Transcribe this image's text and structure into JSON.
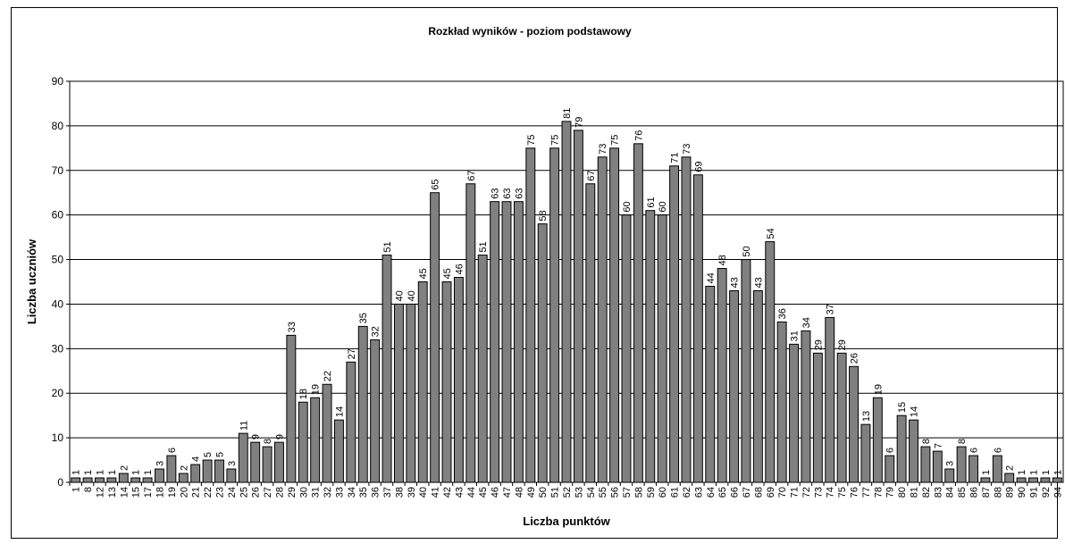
{
  "chart_data": {
    "type": "bar",
    "title": "Rozkład wyników - poziom podstawowy",
    "xlabel": "Liczba punktów",
    "ylabel": "Liczba uczniów",
    "ylim": [
      0,
      90
    ],
    "yticks": [
      0,
      10,
      20,
      30,
      40,
      50,
      60,
      70,
      80,
      90
    ],
    "grid": true,
    "bar_color": "#808080",
    "categories": [
      "1",
      "8",
      "12",
      "13",
      "14",
      "15",
      "17",
      "18",
      "19",
      "20",
      "21",
      "22",
      "23",
      "24",
      "25",
      "26",
      "27",
      "28",
      "29",
      "30",
      "31",
      "32",
      "33",
      "34",
      "35",
      "36",
      "37",
      "38",
      "39",
      "40",
      "41",
      "42",
      "43",
      "44",
      "45",
      "46",
      "47",
      "48",
      "49",
      "50",
      "51",
      "52",
      "53",
      "54",
      "55",
      "56",
      "57",
      "58",
      "59",
      "60",
      "61",
      "62",
      "63",
      "64",
      "65",
      "66",
      "67",
      "68",
      "69",
      "70",
      "71",
      "72",
      "73",
      "74",
      "75",
      "76",
      "77",
      "78",
      "79",
      "80",
      "81",
      "82",
      "83",
      "84",
      "85",
      "86",
      "87",
      "88",
      "89",
      "90",
      "91",
      "92",
      "94"
    ],
    "values": [
      1,
      1,
      1,
      1,
      2,
      1,
      1,
      3,
      6,
      2,
      4,
      5,
      5,
      3,
      11,
      9,
      8,
      9,
      33,
      18,
      19,
      22,
      14,
      27,
      35,
      32,
      51,
      40,
      40,
      45,
      65,
      45,
      46,
      67,
      51,
      63,
      63,
      63,
      75,
      58,
      75,
      81,
      79,
      67,
      73,
      75,
      60,
      76,
      61,
      60,
      71,
      73,
      69,
      44,
      48,
      43,
      50,
      43,
      54,
      36,
      31,
      34,
      29,
      37,
      29,
      26,
      13,
      19,
      6,
      15,
      14,
      8,
      7,
      3,
      8,
      6,
      1,
      6,
      2,
      1,
      1,
      1,
      1
    ]
  }
}
